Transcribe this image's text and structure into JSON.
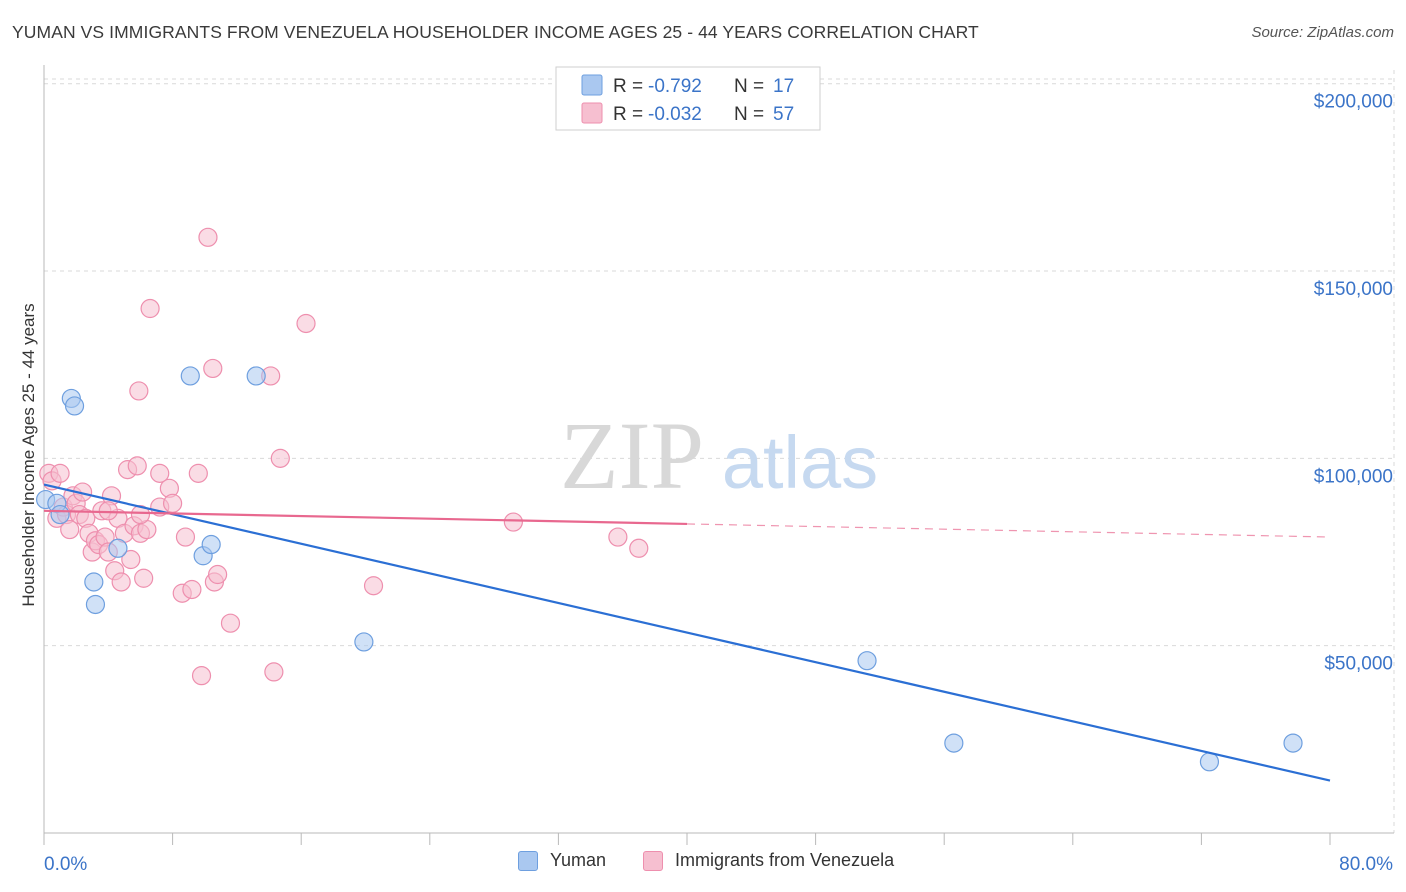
{
  "title": "YUMAN VS IMMIGRANTS FROM VENEZUELA HOUSEHOLDER INCOME AGES 25 - 44 YEARS CORRELATION CHART",
  "source": "Source: ZipAtlas.com",
  "watermark": {
    "zip": "ZIP",
    "atlas": "atlas"
  },
  "colors": {
    "blue_fill": "#aac8f0",
    "blue_stroke": "#6e9fdf",
    "blue_line": "#2b6fd4",
    "pink_fill": "#f6bfd0",
    "pink_stroke": "#ee8fae",
    "pink_line": "#e8688f",
    "axis_text": "#3b74c8",
    "grid": "#d9d9d9"
  },
  "legend_top": [
    {
      "r_label": "R = ",
      "r_value": "-0.792",
      "n_label": "N = ",
      "n_value": "17"
    },
    {
      "r_label": "R = ",
      "r_value": "-0.032",
      "n_label": "N = ",
      "n_value": "57"
    }
  ],
  "chart_data": {
    "type": "scatter",
    "title": "YUMAN VS IMMIGRANTS FROM VENEZUELA HOUSEHOLDER INCOME AGES 25 - 44 YEARS CORRELATION CHART",
    "ylabel": "Householder Income Ages 25 - 44 years",
    "xlim": [
      0,
      80
    ],
    "ylim": [
      0,
      205000
    ],
    "x_tick_labels": [
      "0.0%",
      "80.0%"
    ],
    "y_ticks": [
      50000,
      100000,
      150000,
      200000
    ],
    "y_tick_labels": [
      "$50,000",
      "$100,000",
      "$150,000",
      "$200,000"
    ],
    "series": [
      {
        "name": "Yuman",
        "color": "blue",
        "points": [
          [
            0.1,
            89000
          ],
          [
            0.8,
            88000
          ],
          [
            1.0,
            85000
          ],
          [
            1.7,
            116000
          ],
          [
            1.9,
            114000
          ],
          [
            4.6,
            76000
          ],
          [
            3.1,
            67000
          ],
          [
            3.2,
            61000
          ],
          [
            9.1,
            122000
          ],
          [
            13.2,
            122000
          ],
          [
            9.9,
            74000
          ],
          [
            10.4,
            77000
          ],
          [
            19.9,
            51000
          ],
          [
            51.2,
            46000
          ],
          [
            56.6,
            24000
          ],
          [
            72.5,
            19000
          ],
          [
            77.7,
            24000
          ]
        ],
        "trend": {
          "x0": 0,
          "y0": 93000,
          "x1": 80,
          "y1": 14000,
          "solid_to": 80
        }
      },
      {
        "name": "Immigrants from Venezuela",
        "color": "pink",
        "points": [
          [
            0.3,
            96000
          ],
          [
            0.5,
            94000
          ],
          [
            0.8,
            84000
          ],
          [
            1.0,
            96000
          ],
          [
            1.2,
            87000
          ],
          [
            1.4,
            85000
          ],
          [
            1.6,
            81000
          ],
          [
            1.8,
            90000
          ],
          [
            2.0,
            88000
          ],
          [
            2.2,
            85000
          ],
          [
            2.4,
            91000
          ],
          [
            2.6,
            84000
          ],
          [
            2.8,
            80000
          ],
          [
            3.0,
            75000
          ],
          [
            3.2,
            78000
          ],
          [
            3.4,
            77000
          ],
          [
            3.6,
            86000
          ],
          [
            3.8,
            79000
          ],
          [
            4.0,
            75000
          ],
          [
            4.2,
            90000
          ],
          [
            4.4,
            70000
          ],
          [
            4.6,
            84000
          ],
          [
            4.8,
            67000
          ],
          [
            5.0,
            80000
          ],
          [
            5.2,
            97000
          ],
          [
            5.4,
            73000
          ],
          [
            5.6,
            82000
          ],
          [
            5.8,
            98000
          ],
          [
            6.0,
            80000
          ],
          [
            6.2,
            68000
          ],
          [
            6.4,
            81000
          ],
          [
            6.6,
            140000
          ],
          [
            7.2,
            87000
          ],
          [
            7.2,
            96000
          ],
          [
            7.8,
            92000
          ],
          [
            8.0,
            88000
          ],
          [
            8.6,
            64000
          ],
          [
            8.8,
            79000
          ],
          [
            9.2,
            65000
          ],
          [
            9.6,
            96000
          ],
          [
            9.8,
            42000
          ],
          [
            10.2,
            159000
          ],
          [
            10.5,
            124000
          ],
          [
            10.6,
            67000
          ],
          [
            10.8,
            69000
          ],
          [
            11.6,
            56000
          ],
          [
            5.9,
            118000
          ],
          [
            14.1,
            122000
          ],
          [
            14.3,
            43000
          ],
          [
            14.7,
            100000
          ],
          [
            16.3,
            136000
          ],
          [
            20.5,
            66000
          ],
          [
            29.2,
            83000
          ],
          [
            35.7,
            79000
          ],
          [
            37.0,
            76000
          ],
          [
            4.0,
            86000
          ],
          [
            6.0,
            85000
          ]
        ],
        "trend": {
          "x0": 0,
          "y0": 86000,
          "x1": 80,
          "y1": 79000,
          "solid_to": 40
        }
      }
    ]
  },
  "legend_bottom": [
    {
      "label": "Yuman",
      "color": "blue"
    },
    {
      "label": "Immigrants from Venezuela",
      "color": "pink"
    }
  ]
}
